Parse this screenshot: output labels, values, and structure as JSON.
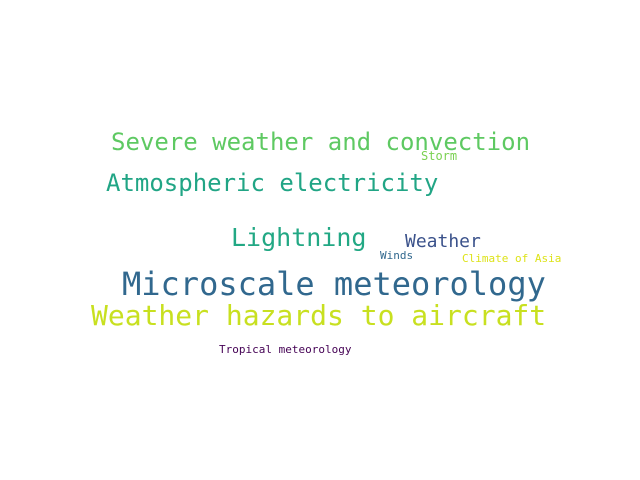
{
  "words": [
    {
      "text": "Severe weather and convection",
      "color": "#5ec962"
    },
    {
      "text": "Storm",
      "color": "#7ad151"
    },
    {
      "text": "Atmospheric electricity",
      "color": "#21a585"
    },
    {
      "text": "Lightning",
      "color": "#22a884"
    },
    {
      "text": "Weather",
      "color": "#3b528b"
    },
    {
      "text": "Winds",
      "color": "#31688e"
    },
    {
      "text": "Climate of Asia",
      "color": "#dde318"
    },
    {
      "text": "Microscale meteorology",
      "color": "#31688e"
    },
    {
      "text": "Weather hazards to aircraft",
      "color": "#c8e020"
    },
    {
      "text": "Tropical meteorology",
      "color": "#440154"
    }
  ]
}
